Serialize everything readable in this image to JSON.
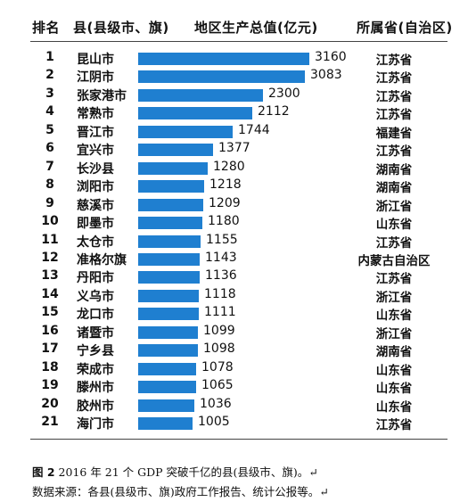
{
  "headers": {
    "rank": "排名",
    "county": "县(县级市、旗)",
    "gdp": "地区生产总值(亿元)",
    "province": "所属省(自治区)"
  },
  "chart_data": {
    "type": "bar",
    "orientation": "horizontal",
    "title": "",
    "xlabel": "地区生产总值(亿元)",
    "ylabel": "",
    "xlim": [
      0,
      3300
    ],
    "grid": false,
    "bar_color": "#1f7fd0",
    "rows": [
      {
        "rank": "1",
        "name": "昆山市",
        "value": 3160,
        "province": "江苏省"
      },
      {
        "rank": "2",
        "name": "江阴市",
        "value": 3083,
        "province": "江苏省"
      },
      {
        "rank": "3",
        "name": "张家港市",
        "value": 2300,
        "province": "江苏省"
      },
      {
        "rank": "4",
        "name": "常熟市",
        "value": 2112,
        "province": "江苏省"
      },
      {
        "rank": "5",
        "name": "晋江市",
        "value": 1744,
        "province": "福建省"
      },
      {
        "rank": "6",
        "name": "宜兴市",
        "value": 1377,
        "province": "江苏省"
      },
      {
        "rank": "7",
        "name": "长沙县",
        "value": 1280,
        "province": "湖南省"
      },
      {
        "rank": "8",
        "name": "浏阳市",
        "value": 1218,
        "province": "湖南省"
      },
      {
        "rank": "9",
        "name": "慈溪市",
        "value": 1209,
        "province": "浙江省"
      },
      {
        "rank": "10",
        "name": "即墨市",
        "value": 1180,
        "province": "山东省"
      },
      {
        "rank": "11",
        "name": "太仓市",
        "value": 1155,
        "province": "江苏省"
      },
      {
        "rank": "12",
        "name": "准格尔旗",
        "value": 1143,
        "province": "内蒙古自治区"
      },
      {
        "rank": "13",
        "name": "丹阳市",
        "value": 1136,
        "province": "江苏省"
      },
      {
        "rank": "14",
        "name": "义乌市",
        "value": 1118,
        "province": "浙江省"
      },
      {
        "rank": "15",
        "name": "龙口市",
        "value": 1111,
        "province": "山东省"
      },
      {
        "rank": "16",
        "name": "诸暨市",
        "value": 1099,
        "province": "浙江省"
      },
      {
        "rank": "17",
        "name": "宁乡县",
        "value": 1098,
        "province": "湖南省"
      },
      {
        "rank": "18",
        "name": "荣成市",
        "value": 1078,
        "province": "山东省"
      },
      {
        "rank": "19",
        "name": "滕州市",
        "value": 1065,
        "province": "山东省"
      },
      {
        "rank": "20",
        "name": "胶州市",
        "value": 1036,
        "province": "山东省"
      },
      {
        "rank": "21",
        "name": "海门市",
        "value": 1005,
        "province": "江苏省"
      }
    ]
  },
  "caption": {
    "label": "图 2",
    "text": "  2016 年 21 个 GDP 突破千亿的县(县级市、旗)。↵",
    "source": "数据来源：各县(县级市、旗)政府工作报告、统计公报等。↵"
  }
}
